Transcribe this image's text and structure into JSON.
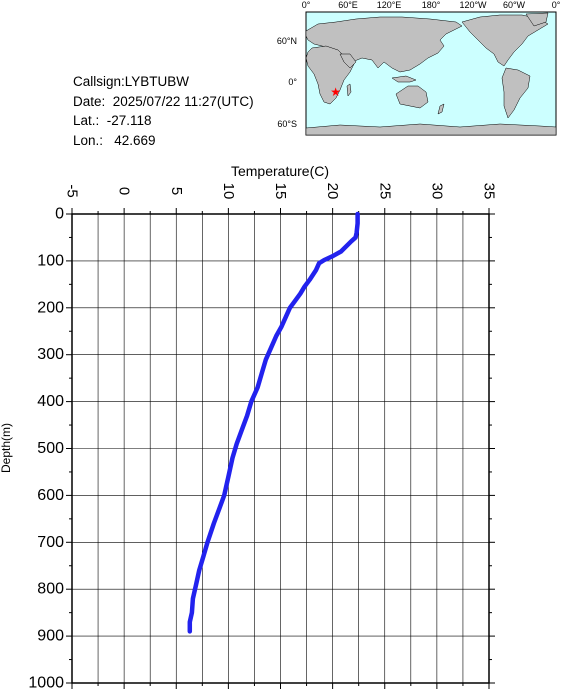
{
  "info": {
    "callsign": "Callsign:LYBTUBW",
    "date": "Date:  2025/07/22 11:27(UTC)",
    "lat": "Lat.:  -27.118",
    "lon": "Lon.:   42.669"
  },
  "map": {
    "lon_labels": [
      "0°",
      "60°E",
      "120°E",
      "180°",
      "120°W",
      "60°W",
      "0°"
    ],
    "lat_labels": [
      "60°N",
      "0°",
      "60°S"
    ],
    "ocean_color": "#ccffff",
    "land_color": "#c0c0c0",
    "marker": {
      "lat": -27.118,
      "lon": 42.669,
      "color": "#ff0000",
      "icon": "star-icon"
    }
  },
  "chart_data": {
    "type": "line",
    "xlabel": "Temperature(C)",
    "ylabel": "Depth(m)",
    "xlim": [
      -5,
      35
    ],
    "ylim": [
      1000,
      0
    ],
    "x_ticks": [
      "-5",
      "0",
      "5",
      "10",
      "15",
      "20",
      "25",
      "30",
      "35"
    ],
    "y_ticks": [
      "0",
      "100",
      "200",
      "300",
      "400",
      "500",
      "600",
      "700",
      "800",
      "900",
      "1000"
    ],
    "grid": true,
    "line_color": "#2222ee",
    "series": [
      {
        "x": [
          22.4,
          22.4,
          22.3,
          22.2,
          21.8,
          20.8,
          20.0,
          19.2,
          18.7,
          18.4,
          17.8,
          17.3,
          16.9,
          16.4,
          15.9,
          15.5,
          15.1,
          14.6,
          14.1,
          13.6,
          13.2,
          12.8,
          12.2,
          11.8,
          11.3,
          10.8,
          10.4,
          10.0,
          9.6,
          9.1,
          8.6,
          8.0,
          7.6,
          7.2,
          6.9,
          6.6,
          6.5,
          6.3,
          6.3
        ],
        "y": [
          0,
          20,
          40,
          50,
          58,
          80,
          90,
          98,
          105,
          120,
          140,
          155,
          170,
          185,
          200,
          220,
          240,
          260,
          285,
          310,
          340,
          370,
          400,
          430,
          460,
          490,
          520,
          560,
          600,
          630,
          660,
          700,
          730,
          760,
          790,
          820,
          850,
          870,
          890
        ]
      }
    ]
  }
}
